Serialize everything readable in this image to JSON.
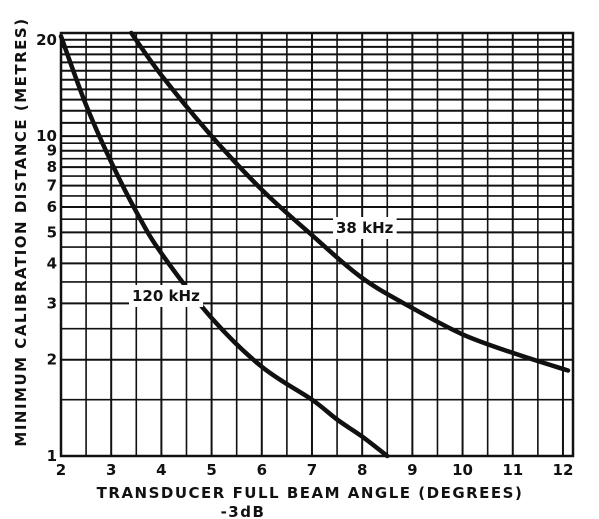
{
  "chart_data": {
    "type": "line",
    "title": "",
    "xlabel": "TRANSDUCER FULL BEAM ANGLE (DEGREES)",
    "xlabel_sub": "-3dB",
    "ylabel": "MINIMUM CALIBRATION DISTANCE (METRES)",
    "x_range": [
      2,
      12.2
    ],
    "y_range": [
      1,
      21
    ],
    "y_scale": "log",
    "grid": true,
    "x_ticks": [
      "2",
      "3",
      "4",
      "5",
      "6",
      "7",
      "8",
      "9",
      "10",
      "11",
      "12"
    ],
    "y_ticks": [
      "1",
      "2",
      "3",
      "4",
      "5",
      "6",
      "7",
      "8",
      "9",
      "10",
      "20"
    ],
    "series": [
      {
        "name": "38 kHz",
        "points": [
          [
            3.4,
            21
          ],
          [
            4,
            15.5
          ],
          [
            5,
            10
          ],
          [
            6,
            6.8
          ],
          [
            7,
            4.9
          ],
          [
            8,
            3.6
          ],
          [
            9,
            2.9
          ],
          [
            10,
            2.4
          ],
          [
            11,
            2.1
          ],
          [
            12.1,
            1.85
          ]
        ]
      },
      {
        "name": "120 kHz",
        "points": [
          [
            2,
            20.5
          ],
          [
            2.5,
            12.5
          ],
          [
            3,
            8.3
          ],
          [
            3.5,
            5.8
          ],
          [
            4,
            4.3
          ],
          [
            5,
            2.7
          ],
          [
            6,
            1.9
          ],
          [
            7,
            1.5
          ],
          [
            7.5,
            1.3
          ],
          [
            8,
            1.15
          ],
          [
            8.5,
            1.0
          ]
        ]
      }
    ],
    "colors": {
      "line": "#111111",
      "grid": "#111111",
      "background": "#ffffff"
    }
  }
}
